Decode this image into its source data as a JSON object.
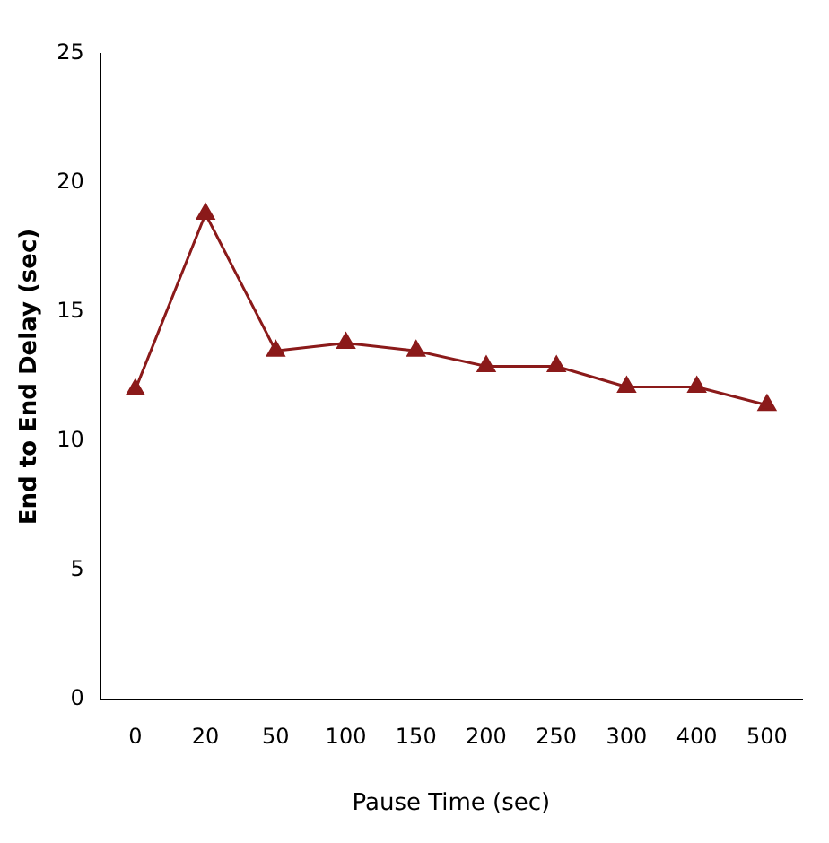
{
  "chart_data": {
    "type": "line",
    "xlabel": "Pause Time (sec)",
    "ylabel": "End to End Delay (sec)",
    "categories": [
      "0",
      "20",
      "50",
      "100",
      "150",
      "200",
      "250",
      "300",
      "400",
      "500"
    ],
    "series": [
      {
        "color": "#8b1a1a",
        "values": [
          12.0,
          18.8,
          13.5,
          13.8,
          13.5,
          12.9,
          12.9,
          12.1,
          12.1,
          11.4
        ]
      }
    ],
    "ylim": [
      0,
      25
    ],
    "yticks": [
      0,
      5,
      10,
      15,
      20,
      25
    ],
    "grid": false,
    "legend": false,
    "marker": "triangle",
    "line_style": "solid"
  }
}
